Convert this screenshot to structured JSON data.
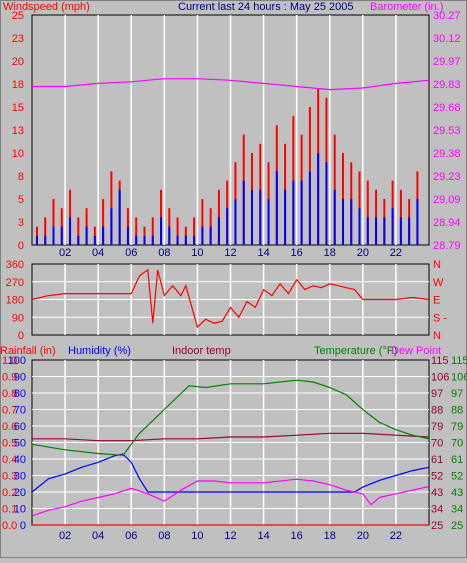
{
  "header": {
    "windspeed_label": "Windspeed (mph)",
    "title": "Current last 24 hours : May 25 2005",
    "barometer_label": "Barometer (in.)"
  },
  "colors": {
    "background": "#c0c0c0",
    "plot_bg": "#c0c0c0",
    "grid": "#ffffff",
    "wind_gust": "#ff0000",
    "wind_avg": "#0000ff",
    "barometer": "#ff00ff",
    "direction": "#ff0000",
    "humidity": "#0000ff",
    "indoor_temp": "#990033",
    "temperature": "#008000",
    "dew_point": "#ff00ff",
    "rainfall": "#ff0000"
  },
  "chart_data": [
    {
      "id": "wind_baro",
      "type": "line",
      "title": "Current last 24 hours : May 25 2005",
      "xlabel": "",
      "x_tick_labels": [
        "02",
        "04",
        "06",
        "08",
        "10",
        "12",
        "14",
        "16",
        "18",
        "20",
        "22"
      ],
      "x_range_hours": [
        0,
        24
      ],
      "left_axis": {
        "label": "Windspeed (mph)",
        "ylim": [
          0,
          25
        ],
        "ticks": [
          "0",
          "3",
          "5",
          "8",
          "10",
          "13",
          "15",
          "18",
          "20",
          "23",
          "25"
        ]
      },
      "right_axis": {
        "label": "Barometer (in.)",
        "ylim": [
          28.79,
          30.27
        ],
        "ticks": [
          "28.79",
          "28.94",
          "29.09",
          "29.23",
          "29.38",
          "29.53",
          "29.68",
          "29.83",
          "29.97",
          "30.12",
          "30.27"
        ]
      },
      "series": [
        {
          "key": "gust",
          "axis": "left",
          "style": "bars",
          "x": [
            0.3,
            0.8,
            1.3,
            1.8,
            2.3,
            2.8,
            3.3,
            3.8,
            4.3,
            4.8,
            5.3,
            5.8,
            6.3,
            6.8,
            7.3,
            7.8,
            8.3,
            8.8,
            9.3,
            9.8,
            10.3,
            10.8,
            11.3,
            11.8,
            12.3,
            12.8,
            13.3,
            13.8,
            14.3,
            14.8,
            15.3,
            15.8,
            16.3,
            16.8,
            17.3,
            17.8,
            18.3,
            18.8,
            19.3,
            19.8,
            20.3,
            20.8,
            21.3,
            21.8,
            22.3,
            22.8,
            23.3
          ],
          "values": [
            2,
            3,
            5,
            4,
            6,
            3,
            4,
            2,
            5,
            8,
            7,
            4,
            3,
            2,
            3,
            6,
            4,
            3,
            2,
            3,
            5,
            4,
            6,
            7,
            9,
            12,
            10,
            11,
            9,
            13,
            11,
            14,
            12,
            15,
            17,
            16,
            12,
            10,
            9,
            8,
            7,
            6,
            5,
            7,
            6,
            5,
            8
          ]
        },
        {
          "key": "average",
          "axis": "left",
          "style": "bars",
          "x": [
            0.3,
            0.8,
            1.3,
            1.8,
            2.3,
            2.8,
            3.3,
            3.8,
            4.3,
            4.8,
            5.3,
            5.8,
            6.3,
            6.8,
            7.3,
            7.8,
            8.3,
            8.8,
            9.3,
            9.8,
            10.3,
            10.8,
            11.3,
            11.8,
            12.3,
            12.8,
            13.3,
            13.8,
            14.3,
            14.8,
            15.3,
            15.8,
            16.3,
            16.8,
            17.3,
            17.8,
            18.3,
            18.8,
            19.3,
            19.8,
            20.3,
            20.8,
            21.3,
            21.8,
            22.3,
            22.8,
            23.3
          ],
          "values": [
            1,
            1,
            2,
            2,
            3,
            1,
            2,
            1,
            2,
            4,
            6,
            2,
            1,
            1,
            1,
            3,
            2,
            1,
            1,
            1,
            2,
            2,
            3,
            4,
            5,
            7,
            6,
            6,
            5,
            8,
            6,
            7,
            7,
            8,
            10,
            9,
            6,
            5,
            5,
            4,
            3,
            3,
            3,
            4,
            3,
            3,
            5
          ]
        },
        {
          "key": "barometer",
          "axis": "right",
          "style": "line",
          "x": [
            0,
            2,
            4,
            6,
            8,
            10,
            12,
            14,
            16,
            18,
            20,
            22,
            24
          ],
          "values": [
            29.81,
            29.81,
            29.83,
            29.84,
            29.86,
            29.86,
            29.85,
            29.83,
            29.81,
            29.79,
            29.8,
            29.83,
            29.85
          ]
        }
      ]
    },
    {
      "id": "wind_direction",
      "type": "line",
      "title": "",
      "x_range_hours": [
        0,
        24
      ],
      "left_axis": {
        "label": "",
        "ylim": [
          0,
          360
        ],
        "ticks": [
          "0",
          "90",
          "180",
          "270",
          "360"
        ]
      },
      "right_axis": {
        "label": "",
        "ticks": [
          "N",
          "S -",
          "E",
          "W",
          "N"
        ]
      },
      "series": [
        {
          "key": "direction",
          "axis": "left",
          "style": "line",
          "x": [
            0,
            1,
            2,
            3,
            4,
            5,
            6,
            6.5,
            7,
            7.3,
            7.6,
            8,
            8.5,
            9,
            9.3,
            10,
            10.5,
            11,
            11.5,
            12,
            12.5,
            13,
            13.5,
            14,
            14.5,
            15,
            15.5,
            16,
            16.5,
            17,
            17.5,
            18,
            18.5,
            19,
            19.5,
            20,
            21,
            22,
            23,
            24
          ],
          "values": [
            180,
            200,
            210,
            210,
            210,
            210,
            210,
            300,
            330,
            60,
            330,
            200,
            250,
            200,
            250,
            40,
            80,
            60,
            70,
            140,
            90,
            170,
            140,
            230,
            200,
            260,
            210,
            280,
            230,
            250,
            240,
            260,
            250,
            240,
            230,
            180,
            180,
            180,
            190,
            180
          ]
        }
      ]
    },
    {
      "id": "climate",
      "type": "line",
      "title": "",
      "x_tick_labels": [
        "02",
        "04",
        "06",
        "08",
        "10",
        "12",
        "14",
        "16",
        "18",
        "20",
        "22"
      ],
      "x_range_hours": [
        0,
        24
      ],
      "axis_labels": {
        "rainfall": "Rainfall (in)",
        "humidity": "Humidity (%)",
        "indoor_temp": "Indoor temp",
        "temperature": "Temperature (°F)",
        "dew_point": "Dew Point"
      },
      "rainfall_axis": {
        "ylim": [
          0,
          1.0
        ],
        "ticks": [
          "0.0",
          "0.1",
          "0.2",
          "0.3",
          "0.4",
          "0.5",
          "0.6",
          "0.7",
          "0.8",
          "0.9",
          "1.0"
        ]
      },
      "humidity_axis": {
        "ylim": [
          0,
          100
        ],
        "ticks": [
          "0",
          "10",
          "20",
          "30",
          "40",
          "50",
          "60",
          "70",
          "80",
          "90",
          "100"
        ]
      },
      "temperature_axis": {
        "ylim": [
          25,
          115
        ],
        "ticks": [
          "25",
          "34",
          "43",
          "52",
          "61",
          "70",
          "79",
          "88",
          "97",
          "106",
          "115"
        ]
      },
      "temperature_axis_2": {
        "ticks": [
          "25",
          "34",
          "43",
          "52",
          "61",
          "70",
          "79",
          "88",
          "97",
          "106",
          "115"
        ]
      },
      "series": [
        {
          "key": "humidity",
          "axis": "humidity",
          "style": "line",
          "x": [
            0,
            1,
            2,
            3,
            4,
            5,
            5.5,
            6,
            6.5,
            7,
            8,
            10,
            12,
            14,
            16,
            18,
            19.5,
            20,
            21,
            22,
            23,
            24
          ],
          "values": [
            20,
            28,
            31,
            35,
            38,
            42,
            43,
            38,
            28,
            20,
            20,
            20,
            20,
            20,
            20,
            20,
            20,
            23,
            27,
            30,
            33,
            35
          ]
        },
        {
          "key": "indoor_temp",
          "axis": "temperature",
          "style": "line",
          "x": [
            0,
            2,
            4,
            6,
            8,
            10,
            12,
            14,
            16,
            18,
            20,
            22,
            24
          ],
          "values": [
            72,
            72,
            71,
            71,
            72,
            72,
            73,
            73,
            74,
            75,
            75,
            74,
            73
          ]
        },
        {
          "key": "temperature",
          "axis": "temperature",
          "style": "line",
          "x": [
            0,
            2,
            4,
            5.5,
            6.5,
            8,
            9.5,
            10.5,
            12,
            14,
            16,
            17,
            18,
            19,
            20,
            21,
            22,
            23,
            24
          ],
          "values": [
            69,
            66,
            64,
            63,
            75,
            88,
            101,
            100,
            102,
            102,
            104,
            103,
            100,
            96,
            88,
            81,
            77,
            74,
            72
          ]
        },
        {
          "key": "dew_point",
          "axis": "temperature",
          "style": "line",
          "x": [
            0,
            1,
            2,
            3,
            4,
            5,
            6,
            7,
            8,
            9,
            10,
            11,
            12,
            14,
            16,
            17,
            18,
            19,
            20,
            20.5,
            21,
            22,
            23,
            24
          ],
          "values": [
            30,
            33,
            35,
            38,
            40,
            42,
            45,
            42,
            38,
            44,
            49,
            49,
            48,
            48,
            50,
            49,
            47,
            44,
            42,
            36,
            40,
            42,
            44,
            46
          ]
        },
        {
          "key": "rainfall",
          "axis": "rainfall",
          "style": "line",
          "x": [
            0,
            24
          ],
          "values": [
            0,
            0
          ]
        }
      ]
    }
  ]
}
